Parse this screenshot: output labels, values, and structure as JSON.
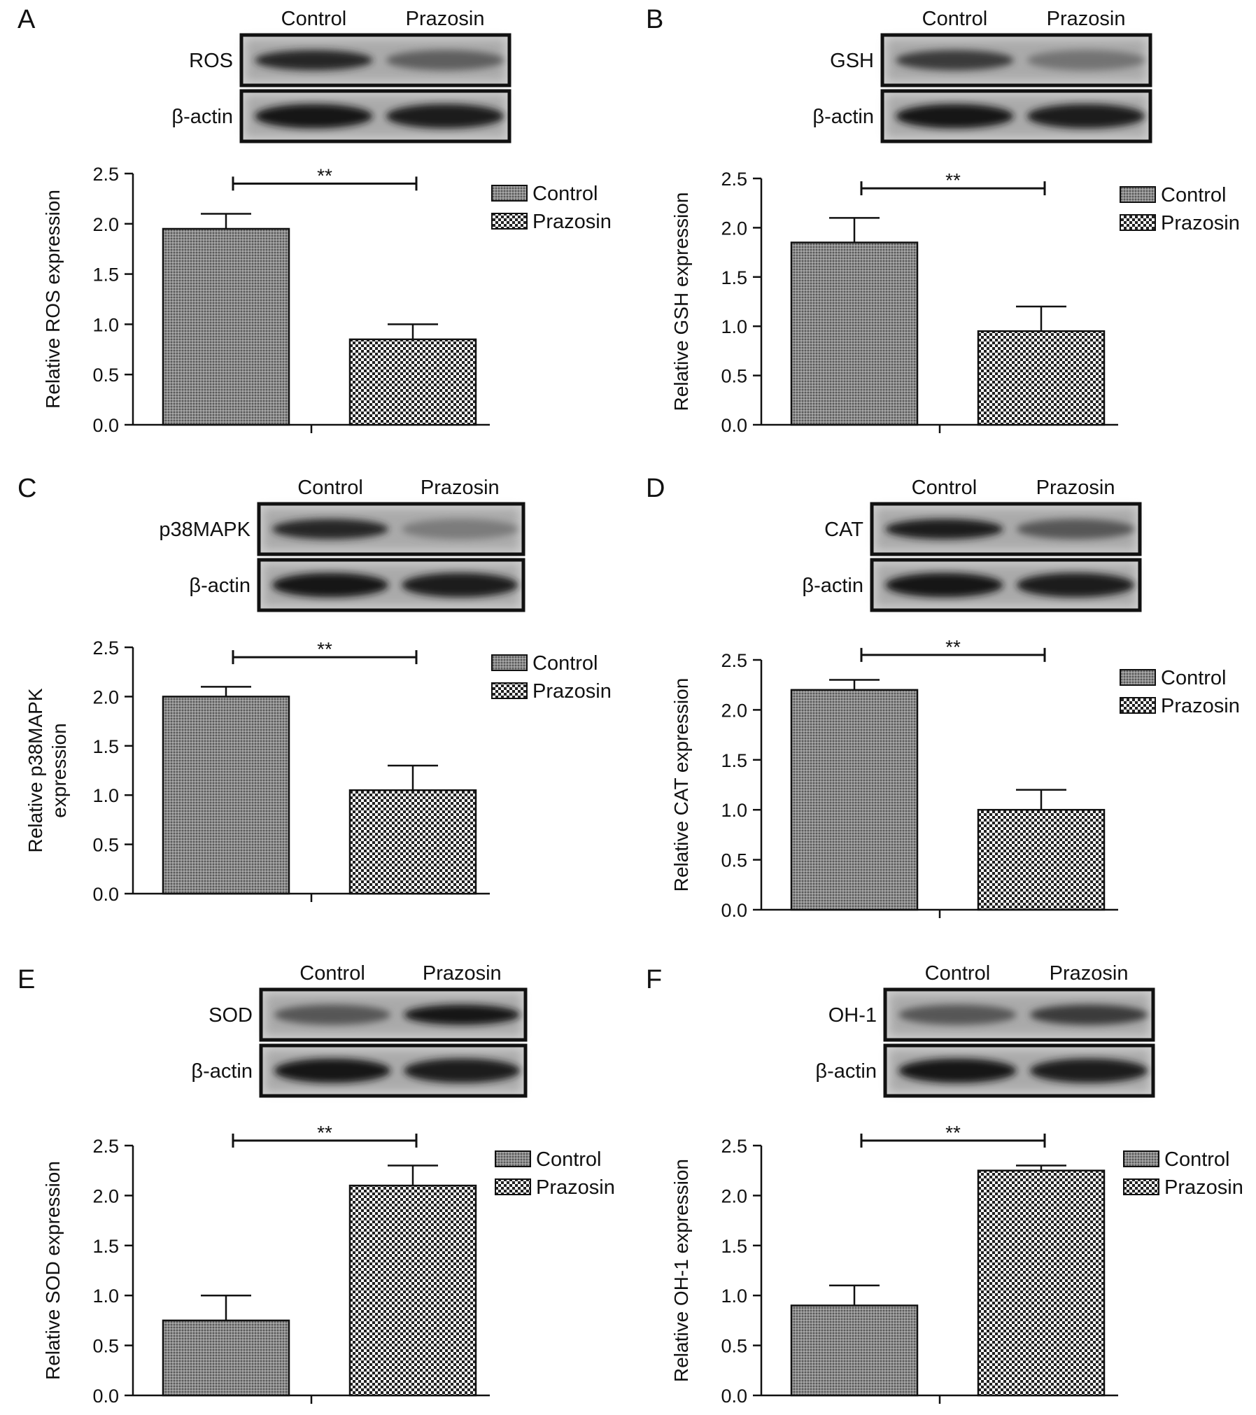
{
  "figure": {
    "y_tick_labels": [
      "0.0",
      "0.5",
      "1.0",
      "1.5",
      "2.0",
      "2.5"
    ],
    "colors": {
      "bar_outline": "#111111",
      "blot_frame": "#111111",
      "text": "#111111"
    }
  },
  "chart_data": [
    {
      "panel": "A",
      "type": "bar",
      "blot": {
        "protein_label": "ROS",
        "loading_control_label": "β-actin",
        "lane_labels": [
          "Control",
          "Prazosin"
        ]
      },
      "ylabel": "Relative ROS expression",
      "ylim": [
        0,
        2.5
      ],
      "categories": [
        "Control",
        "Prazosin"
      ],
      "values": [
        1.95,
        0.85
      ],
      "errors": [
        0.15,
        0.15
      ],
      "significance": "**",
      "legend": {
        "position": "top-right",
        "entries": [
          "Control",
          "Prazosin"
        ]
      }
    },
    {
      "panel": "B",
      "type": "bar",
      "blot": {
        "protein_label": "GSH",
        "loading_control_label": "β-actin",
        "lane_labels": [
          "Control",
          "Prazosin"
        ]
      },
      "ylabel": "Relative GSH expression",
      "ylim": [
        0,
        2.5
      ],
      "categories": [
        "Control",
        "Prazosin"
      ],
      "values": [
        1.85,
        0.95
      ],
      "errors": [
        0.25,
        0.25
      ],
      "significance": "**",
      "legend": {
        "position": "top-right",
        "entries": [
          "Control",
          "Prazosin"
        ]
      }
    },
    {
      "panel": "C",
      "type": "bar",
      "blot": {
        "protein_label": "p38MAPK",
        "loading_control_label": "β-actin",
        "lane_labels": [
          "Control",
          "Prazosin"
        ]
      },
      "ylabel": [
        "Relative p38MAPK",
        "expression"
      ],
      "ylim": [
        0,
        2.5
      ],
      "categories": [
        "Control",
        "Prazosin"
      ],
      "values": [
        2.0,
        1.05
      ],
      "errors": [
        0.1,
        0.25
      ],
      "significance": "**",
      "legend": {
        "position": "top-right",
        "entries": [
          "Control",
          "Prazosin"
        ]
      }
    },
    {
      "panel": "D",
      "type": "bar",
      "blot": {
        "protein_label": "CAT",
        "loading_control_label": "β-actin",
        "lane_labels": [
          "Control",
          "Prazosin"
        ]
      },
      "ylabel": "Relative CAT expression",
      "ylim": [
        0,
        2.5
      ],
      "categories": [
        "Control",
        "Prazosin"
      ],
      "values": [
        2.2,
        1.0
      ],
      "errors": [
        0.1,
        0.2
      ],
      "significance": "**",
      "legend": {
        "position": "top-right",
        "entries": [
          "Control",
          "Prazosin"
        ]
      }
    },
    {
      "panel": "E",
      "type": "bar",
      "blot": {
        "protein_label": "SOD",
        "loading_control_label": "β-actin",
        "lane_labels": [
          "Control",
          "Prazosin"
        ]
      },
      "ylabel": "Relative SOD expression",
      "ylim": [
        0,
        2.5
      ],
      "categories": [
        "Control",
        "Prazosin"
      ],
      "values": [
        0.75,
        2.1
      ],
      "errors": [
        0.25,
        0.2
      ],
      "significance": "**",
      "legend": {
        "position": "top-right",
        "entries": [
          "Control",
          "Prazosin"
        ]
      }
    },
    {
      "panel": "F",
      "type": "bar",
      "blot": {
        "protein_label": "OH-1",
        "loading_control_label": "β-actin",
        "lane_labels": [
          "Control",
          "Prazosin"
        ]
      },
      "ylabel": "Relative OH-1 expression",
      "ylim": [
        0,
        2.5
      ],
      "categories": [
        "Control",
        "Prazosin"
      ],
      "values": [
        0.9,
        2.25
      ],
      "errors": [
        0.2,
        0.05
      ],
      "significance": "**",
      "legend": {
        "position": "top-right",
        "entries": [
          "Control",
          "Prazosin"
        ]
      }
    }
  ]
}
